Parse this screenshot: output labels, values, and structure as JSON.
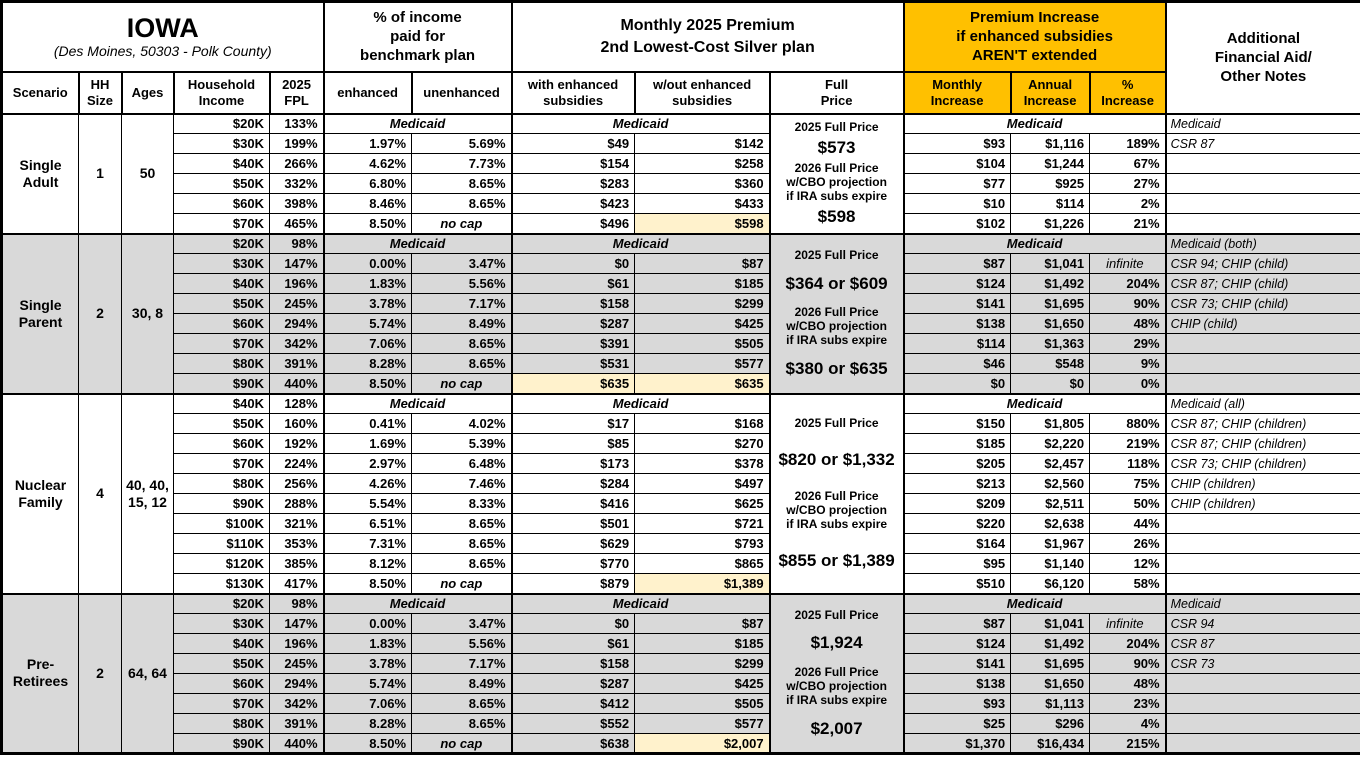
{
  "title": {
    "state": "IOWA",
    "location": "(Des Moines, 50303 - Polk County)"
  },
  "colors": {
    "accent_orange": "#FFC000",
    "band_gray": "#D9D9D9",
    "highlight_yellow": "#FFF2CC"
  },
  "header": {
    "pct_income": "% of income\npaid for\nbenchmark plan",
    "monthly_premium": "Monthly 2025 Premium\n2nd Lowest-Cost Silver plan",
    "premium_increase": "Premium Increase\nif enhanced subsidies\nAREN'T extended",
    "notes": "Additional\nFinancial Aid/\nOther Notes",
    "scenario": "Scenario",
    "hh_size": "HH\nSize",
    "ages": "Ages",
    "household_income": "Household\nIncome",
    "fpl": "2025\nFPL",
    "enhanced": "enhanced",
    "unenhanced": "unenhanced",
    "with_subsidies": "with enhanced\nsubsidies",
    "without_subsidies": "w/out enhanced\nsubsidies",
    "full_price": "Full\nPrice",
    "monthly_increase": "Monthly\nIncrease",
    "annual_increase": "Annual\nIncrease",
    "pct_increase": "%\nIncrease"
  },
  "groups": [
    {
      "scenario": "Single\nAdult",
      "hh_size": "1",
      "ages": "50",
      "shaded": false,
      "medicaid_label": "Medicaid",
      "full_price": {
        "label_2025": "2025 Full Price",
        "value_2025": "$573",
        "label_2026": "2026 Full Price\nw/CBO projection\nif IRA subs expire",
        "value_2026": "$598"
      },
      "rows": [
        {
          "income": "$20K",
          "fpl": "133%",
          "medicaid_row": true,
          "note": "Medicaid"
        },
        {
          "income": "$30K",
          "fpl": "199%",
          "enhanced": "1.97%",
          "unenhanced": "5.69%",
          "with_sub": "$49",
          "without_sub": "$142",
          "monthly": "$93",
          "annual": "$1,116",
          "pct": "189%",
          "note": "CSR 87"
        },
        {
          "income": "$40K",
          "fpl": "266%",
          "enhanced": "4.62%",
          "unenhanced": "7.73%",
          "with_sub": "$154",
          "without_sub": "$258",
          "monthly": "$104",
          "annual": "$1,244",
          "pct": "67%",
          "note": ""
        },
        {
          "income": "$50K",
          "fpl": "332%",
          "enhanced": "6.80%",
          "unenhanced": "8.65%",
          "with_sub": "$283",
          "without_sub": "$360",
          "monthly": "$77",
          "annual": "$925",
          "pct": "27%",
          "note": ""
        },
        {
          "income": "$60K",
          "fpl": "398%",
          "enhanced": "8.46%",
          "unenhanced": "8.65%",
          "with_sub": "$423",
          "without_sub": "$433",
          "monthly": "$10",
          "annual": "$114",
          "pct": "2%",
          "note": ""
        },
        {
          "income": "$70K",
          "fpl": "465%",
          "enhanced": "8.50%",
          "unenhanced": "no cap",
          "no_cap": true,
          "with_sub": "$496",
          "without_sub": "$598",
          "hl_without": true,
          "monthly": "$102",
          "annual": "$1,226",
          "pct": "21%",
          "note": ""
        }
      ]
    },
    {
      "scenario": "Single\nParent",
      "hh_size": "2",
      "ages": "30, 8",
      "shaded": true,
      "medicaid_label": "Medicaid",
      "full_price": {
        "label_2025": "2025 Full Price",
        "value_2025": "$364 or $609",
        "label_2026": "2026 Full Price\nw/CBO projection\nif IRA subs expire",
        "value_2026": "$380 or $635"
      },
      "rows": [
        {
          "income": "$20K",
          "fpl": "98%",
          "medicaid_row": true,
          "note": "Medicaid (both)"
        },
        {
          "income": "$30K",
          "fpl": "147%",
          "enhanced": "0.00%",
          "unenhanced": "3.47%",
          "with_sub": "$0",
          "without_sub": "$87",
          "monthly": "$87",
          "annual": "$1,041",
          "pct": "infinite",
          "infinite": true,
          "note": "CSR 94; CHIP (child)"
        },
        {
          "income": "$40K",
          "fpl": "196%",
          "enhanced": "1.83%",
          "unenhanced": "5.56%",
          "with_sub": "$61",
          "without_sub": "$185",
          "monthly": "$124",
          "annual": "$1,492",
          "pct": "204%",
          "note": "CSR 87; CHIP (child)"
        },
        {
          "income": "$50K",
          "fpl": "245%",
          "enhanced": "3.78%",
          "unenhanced": "7.17%",
          "with_sub": "$158",
          "without_sub": "$299",
          "monthly": "$141",
          "annual": "$1,695",
          "pct": "90%",
          "note": "CSR 73; CHIP (child)"
        },
        {
          "income": "$60K",
          "fpl": "294%",
          "enhanced": "5.74%",
          "unenhanced": "8.49%",
          "with_sub": "$287",
          "without_sub": "$425",
          "monthly": "$138",
          "annual": "$1,650",
          "pct": "48%",
          "note": "CHIP (child)"
        },
        {
          "income": "$70K",
          "fpl": "342%",
          "enhanced": "7.06%",
          "unenhanced": "8.65%",
          "with_sub": "$391",
          "without_sub": "$505",
          "monthly": "$114",
          "annual": "$1,363",
          "pct": "29%",
          "note": ""
        },
        {
          "income": "$80K",
          "fpl": "391%",
          "enhanced": "8.28%",
          "unenhanced": "8.65%",
          "with_sub": "$531",
          "without_sub": "$577",
          "monthly": "$46",
          "annual": "$548",
          "pct": "9%",
          "note": ""
        },
        {
          "income": "$90K",
          "fpl": "440%",
          "enhanced": "8.50%",
          "unenhanced": "no cap",
          "no_cap": true,
          "with_sub": "$635",
          "hl_with": true,
          "without_sub": "$635",
          "hl_without": true,
          "monthly": "$0",
          "annual": "$0",
          "pct": "0%",
          "note": ""
        }
      ]
    },
    {
      "scenario": "Nuclear\nFamily",
      "hh_size": "4",
      "ages": "40, 40,\n15, 12",
      "shaded": false,
      "medicaid_label": "Medicaid",
      "full_price": {
        "label_2025": "2025 Full Price",
        "value_2025": "$820 or $1,332",
        "label_2026": "2026 Full Price\nw/CBO projection\nif IRA subs expire",
        "value_2026": "$855 or $1,389"
      },
      "rows": [
        {
          "income": "$40K",
          "fpl": "128%",
          "medicaid_row": true,
          "note": "Medicaid (all)"
        },
        {
          "income": "$50K",
          "fpl": "160%",
          "enhanced": "0.41%",
          "unenhanced": "4.02%",
          "with_sub": "$17",
          "without_sub": "$168",
          "monthly": "$150",
          "annual": "$1,805",
          "pct": "880%",
          "note": "CSR 87; CHIP (children)"
        },
        {
          "income": "$60K",
          "fpl": "192%",
          "enhanced": "1.69%",
          "unenhanced": "5.39%",
          "with_sub": "$85",
          "without_sub": "$270",
          "monthly": "$185",
          "annual": "$2,220",
          "pct": "219%",
          "note": "CSR 87; CHIP (children)"
        },
        {
          "income": "$70K",
          "fpl": "224%",
          "enhanced": "2.97%",
          "unenhanced": "6.48%",
          "with_sub": "$173",
          "without_sub": "$378",
          "monthly": "$205",
          "annual": "$2,457",
          "pct": "118%",
          "note": "CSR 73; CHIP (children)"
        },
        {
          "income": "$80K",
          "fpl": "256%",
          "enhanced": "4.26%",
          "unenhanced": "7.46%",
          "with_sub": "$284",
          "without_sub": "$497",
          "monthly": "$213",
          "annual": "$2,560",
          "pct": "75%",
          "note": "CHIP (children)"
        },
        {
          "income": "$90K",
          "fpl": "288%",
          "enhanced": "5.54%",
          "unenhanced": "8.33%",
          "with_sub": "$416",
          "without_sub": "$625",
          "monthly": "$209",
          "annual": "$2,511",
          "pct": "50%",
          "note": "CHIP (children)"
        },
        {
          "income": "$100K",
          "fpl": "321%",
          "enhanced": "6.51%",
          "unenhanced": "8.65%",
          "with_sub": "$501",
          "without_sub": "$721",
          "monthly": "$220",
          "annual": "$2,638",
          "pct": "44%",
          "note": ""
        },
        {
          "income": "$110K",
          "fpl": "353%",
          "enhanced": "7.31%",
          "unenhanced": "8.65%",
          "with_sub": "$629",
          "without_sub": "$793",
          "monthly": "$164",
          "annual": "$1,967",
          "pct": "26%",
          "note": ""
        },
        {
          "income": "$120K",
          "fpl": "385%",
          "enhanced": "8.12%",
          "unenhanced": "8.65%",
          "with_sub": "$770",
          "without_sub": "$865",
          "monthly": "$95",
          "annual": "$1,140",
          "pct": "12%",
          "note": ""
        },
        {
          "income": "$130K",
          "fpl": "417%",
          "enhanced": "8.50%",
          "unenhanced": "no cap",
          "no_cap": true,
          "with_sub": "$879",
          "without_sub": "$1,389",
          "hl_without": true,
          "monthly": "$510",
          "annual": "$6,120",
          "pct": "58%",
          "note": ""
        }
      ]
    },
    {
      "scenario": "Pre-\nRetirees",
      "hh_size": "2",
      "ages": "64, 64",
      "shaded": true,
      "medicaid_label": "Medicaid",
      "full_price": {
        "label_2025": "2025 Full Price",
        "value_2025": "$1,924",
        "label_2026": "2026 Full Price\nw/CBO projection\nif IRA subs expire",
        "value_2026": "$2,007"
      },
      "rows": [
        {
          "income": "$20K",
          "fpl": "98%",
          "medicaid_row": true,
          "note": "Medicaid"
        },
        {
          "income": "$30K",
          "fpl": "147%",
          "enhanced": "0.00%",
          "unenhanced": "3.47%",
          "with_sub": "$0",
          "without_sub": "$87",
          "monthly": "$87",
          "annual": "$1,041",
          "pct": "infinite",
          "infinite": true,
          "note": "CSR 94"
        },
        {
          "income": "$40K",
          "fpl": "196%",
          "enhanced": "1.83%",
          "unenhanced": "5.56%",
          "with_sub": "$61",
          "without_sub": "$185",
          "monthly": "$124",
          "annual": "$1,492",
          "pct": "204%",
          "note": "CSR 87"
        },
        {
          "income": "$50K",
          "fpl": "245%",
          "enhanced": "3.78%",
          "unenhanced": "7.17%",
          "with_sub": "$158",
          "without_sub": "$299",
          "monthly": "$141",
          "annual": "$1,695",
          "pct": "90%",
          "note": "CSR 73"
        },
        {
          "income": "$60K",
          "fpl": "294%",
          "enhanced": "5.74%",
          "unenhanced": "8.49%",
          "with_sub": "$287",
          "without_sub": "$425",
          "monthly": "$138",
          "annual": "$1,650",
          "pct": "48%",
          "note": ""
        },
        {
          "income": "$70K",
          "fpl": "342%",
          "enhanced": "7.06%",
          "unenhanced": "8.65%",
          "with_sub": "$412",
          "without_sub": "$505",
          "monthly": "$93",
          "annual": "$1,113",
          "pct": "23%",
          "note": ""
        },
        {
          "income": "$80K",
          "fpl": "391%",
          "enhanced": "8.28%",
          "unenhanced": "8.65%",
          "with_sub": "$552",
          "without_sub": "$577",
          "monthly": "$25",
          "annual": "$296",
          "pct": "4%",
          "note": ""
        },
        {
          "income": "$90K",
          "fpl": "440%",
          "enhanced": "8.50%",
          "unenhanced": "no cap",
          "no_cap": true,
          "with_sub": "$638",
          "without_sub": "$2,007",
          "hl_without": true,
          "monthly": "$1,370",
          "annual": "$16,434",
          "pct": "215%",
          "note": ""
        }
      ]
    }
  ]
}
